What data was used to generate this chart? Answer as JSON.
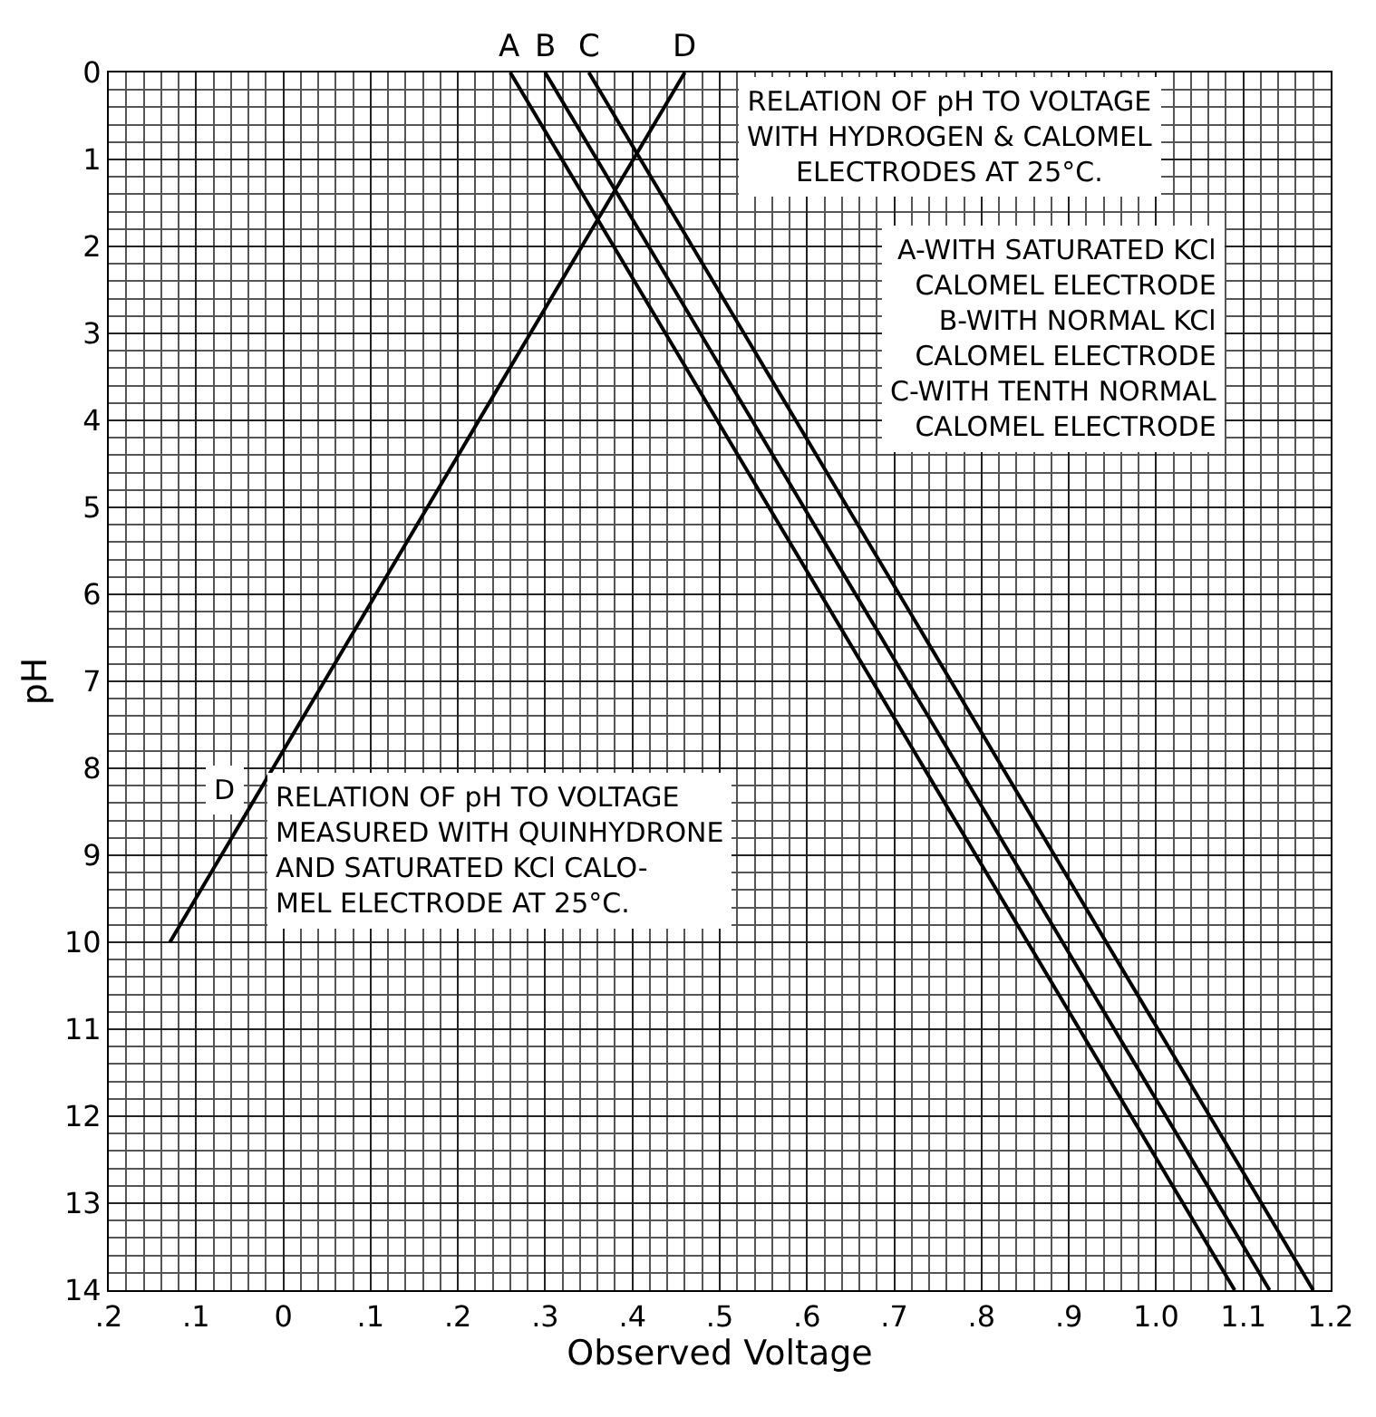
{
  "chart_data": {
    "type": "line",
    "xlabel": "Observed Voltage",
    "ylabel": "pH",
    "series": [
      {
        "name": "A",
        "color": "#000000",
        "x": [
          0.26,
          1.09
        ],
        "values": [
          0,
          14
        ]
      },
      {
        "name": "B",
        "color": "#000000",
        "x": [
          0.3,
          1.13
        ],
        "values": [
          0,
          14
        ]
      },
      {
        "name": "C",
        "color": "#000000",
        "x": [
          0.35,
          1.18
        ],
        "values": [
          0,
          14
        ]
      },
      {
        "name": "D",
        "color": "#000000",
        "x": [
          0.46,
          -0.13
        ],
        "values": [
          0,
          10
        ]
      }
    ],
    "xlim": [
      -0.2,
      1.2
    ],
    "xticks": [
      {
        "value": -0.2,
        "label": ".2"
      },
      {
        "value": -0.1,
        "label": ".1"
      },
      0,
      {
        "value": 0.1,
        "label": ".1"
      },
      {
        "value": 0.2,
        "label": ".2"
      },
      {
        "value": 0.3,
        "label": ".3"
      },
      {
        "value": 0.4,
        "label": ".4"
      },
      {
        "value": 0.5,
        "label": ".5"
      },
      {
        "value": 0.6,
        "label": ".6"
      },
      {
        "value": 0.7,
        "label": ".7"
      },
      {
        "value": 0.8,
        "label": ".8"
      },
      {
        "value": 0.9,
        "label": ".9"
      },
      {
        "value": 1.0,
        "label": "1.0"
      },
      1.1,
      1.2
    ],
    "ylim": [
      14,
      0
    ],
    "yticks": [
      0,
      1,
      2,
      3,
      4,
      5,
      6,
      7,
      8,
      9,
      10,
      11,
      12,
      13,
      14
    ],
    "grid": true,
    "legend": false,
    "marker": "none",
    "line_style": "solid",
    "annotations": [
      "RELATION OF pH TO VOLTAGE\nWITH HYDROGEN & CALOMEL\nELECTRODES AT 25°C.",
      "A-WITH SATURATED KCl\nCALOMEL ELECTRODE\nB-WITH NORMAL KCl\nCALOMEL ELECTRODE\nC-WITH TENTH NORMAL\nCALOMEL ELECTRODE",
      "RELATION OF pH TO VOLTAGE\nMEASURED WITH QUINHYDRONE\nAND SATURATED KCl CALO-\nMEL ELECTRODE AT 25°C.",
      "D"
    ]
  }
}
